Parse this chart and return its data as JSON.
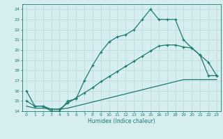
{
  "line1_x": [
    0,
    1,
    2,
    3,
    4,
    5,
    6,
    7,
    8,
    9,
    10,
    11,
    12,
    13,
    14,
    15,
    16,
    17,
    18,
    19,
    20,
    21,
    22,
    23
  ],
  "line1_y": [
    16.0,
    14.5,
    14.5,
    14.0,
    14.0,
    15.0,
    15.2,
    17.0,
    18.5,
    19.8,
    20.8,
    21.3,
    21.5,
    22.0,
    23.0,
    24.0,
    23.0,
    23.0,
    23.0,
    21.0,
    20.2,
    19.5,
    18.8,
    17.5
  ],
  "line2_x": [
    0,
    1,
    2,
    3,
    4,
    5,
    6,
    7,
    8,
    9,
    10,
    11,
    12,
    13,
    14,
    15,
    16,
    17,
    18,
    19,
    20,
    21,
    22,
    23
  ],
  "line2_y": [
    15.0,
    14.5,
    14.5,
    14.2,
    14.2,
    14.8,
    15.3,
    15.8,
    16.3,
    16.9,
    17.4,
    17.9,
    18.4,
    18.9,
    19.4,
    19.9,
    20.4,
    20.5,
    20.5,
    20.3,
    20.2,
    19.5,
    17.5,
    17.5
  ],
  "line3_x": [
    0,
    1,
    2,
    3,
    4,
    5,
    6,
    7,
    8,
    9,
    10,
    11,
    12,
    13,
    14,
    15,
    16,
    17,
    18,
    19,
    20,
    21,
    22,
    23
  ],
  "line3_y": [
    14.5,
    14.3,
    14.3,
    14.2,
    14.2,
    14.3,
    14.5,
    14.7,
    14.9,
    15.1,
    15.3,
    15.5,
    15.7,
    15.9,
    16.1,
    16.3,
    16.5,
    16.7,
    16.9,
    17.1,
    17.1,
    17.1,
    17.1,
    17.1
  ],
  "line_color": "#1a7a6e",
  "bg_color": "#d6eef0",
  "grid_color": "#b8d8dc",
  "xlabel": "Humidex (Indice chaleur)",
  "ylim": [
    14,
    24.5
  ],
  "xlim": [
    -0.5,
    23.5
  ],
  "yticks": [
    14,
    15,
    16,
    17,
    18,
    19,
    20,
    21,
    22,
    23,
    24
  ],
  "xticks": [
    0,
    1,
    2,
    3,
    4,
    5,
    6,
    7,
    8,
    9,
    10,
    11,
    12,
    13,
    14,
    15,
    16,
    17,
    18,
    19,
    20,
    21,
    22,
    23
  ]
}
